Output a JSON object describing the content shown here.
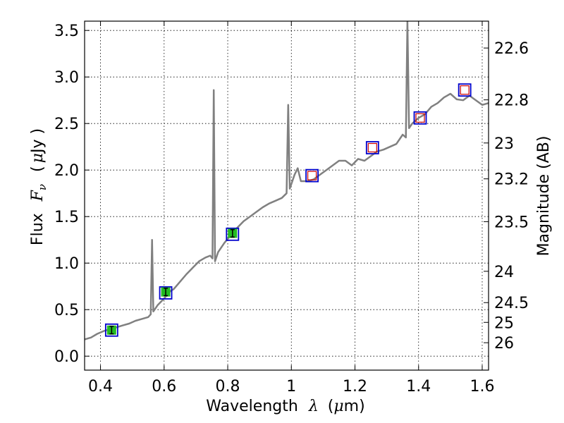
{
  "chart_data": {
    "type": "line",
    "title": "",
    "xlabel": "Wavelength",
    "xlabel_symbol": "λ",
    "xlabel_unit_open": "(",
    "xlabel_unit_mu": "μ",
    "xlabel_unit_rest": "m)",
    "ylabel": "Flux",
    "ylabel_symbol": "F",
    "ylabel_subscript": "ν",
    "ylabel_unit_open": "(",
    "ylabel_unit_mu": "μ",
    "ylabel_unit_rest": "Jy )",
    "y2label": "Magnitude (AB)",
    "xlim": [
      0.35,
      1.62
    ],
    "ylim": [
      -0.15,
      3.6
    ],
    "x_ticks": [
      0.4,
      0.6,
      0.8,
      1.0,
      1.2,
      1.4,
      1.6
    ],
    "x_tick_labels": [
      "0.4",
      "0.6",
      "0.8",
      "1",
      "1.2",
      "1.4",
      "1.6"
    ],
    "y_ticks": [
      0.0,
      0.5,
      1.0,
      1.5,
      2.0,
      2.5,
      3.0,
      3.5
    ],
    "y_tick_labels": [
      "0.0",
      "0.5",
      "1.0",
      "1.5",
      "2.0",
      "2.5",
      "3.0",
      "3.5"
    ],
    "y2_ticks": [
      22.6,
      22.8,
      23,
      23.2,
      23.5,
      24,
      24.5,
      25,
      26
    ],
    "y2_tick_labels": [
      "22.6",
      "22.8",
      "23",
      "23.2",
      "23.5",
      "24",
      "24.5",
      "25",
      "26"
    ],
    "grid": true,
    "colors": {
      "spectrum": "#808080",
      "model_box": "#0000cc",
      "obs_box": "#cc0000",
      "obs_fill": "#22bb22"
    },
    "spectrum": {
      "name": "spectrum",
      "x": [
        0.35,
        0.37,
        0.39,
        0.41,
        0.43,
        0.45,
        0.47,
        0.49,
        0.51,
        0.53,
        0.55,
        0.558,
        0.562,
        0.566,
        0.58,
        0.6,
        0.62,
        0.63,
        0.65,
        0.67,
        0.69,
        0.71,
        0.73,
        0.745,
        0.752,
        0.756,
        0.76,
        0.77,
        0.79,
        0.81,
        0.83,
        0.85,
        0.87,
        0.89,
        0.91,
        0.93,
        0.95,
        0.97,
        0.985,
        0.99,
        0.995,
        1.0,
        1.01,
        1.02,
        1.03,
        1.05,
        1.07,
        1.09,
        1.11,
        1.13,
        1.15,
        1.17,
        1.19,
        1.21,
        1.23,
        1.25,
        1.27,
        1.29,
        1.31,
        1.33,
        1.35,
        1.36,
        1.365,
        1.37,
        1.38,
        1.4,
        1.42,
        1.44,
        1.46,
        1.48,
        1.5,
        1.52,
        1.54,
        1.56,
        1.58,
        1.6,
        1.62
      ],
      "y": [
        0.18,
        0.2,
        0.24,
        0.27,
        0.29,
        0.31,
        0.33,
        0.35,
        0.38,
        0.4,
        0.42,
        0.45,
        1.25,
        0.48,
        0.55,
        0.62,
        0.7,
        0.72,
        0.8,
        0.88,
        0.95,
        1.02,
        1.06,
        1.08,
        1.05,
        2.86,
        1.02,
        1.12,
        1.22,
        1.3,
        1.38,
        1.45,
        1.5,
        1.55,
        1.6,
        1.64,
        1.67,
        1.7,
        1.75,
        2.7,
        1.8,
        1.85,
        1.95,
        2.02,
        1.88,
        1.88,
        1.9,
        1.95,
        2.0,
        2.05,
        2.1,
        2.1,
        2.05,
        2.12,
        2.1,
        2.15,
        2.2,
        2.22,
        2.25,
        2.28,
        2.38,
        2.35,
        3.6,
        2.45,
        2.5,
        2.56,
        2.6,
        2.68,
        2.72,
        2.78,
        2.82,
        2.76,
        2.75,
        2.8,
        2.75,
        2.7,
        2.72
      ]
    },
    "model_points": {
      "name": "model",
      "x": [
        0.435,
        0.605,
        0.815,
        1.065,
        1.255,
        1.405,
        1.545
      ],
      "y": [
        0.28,
        0.68,
        1.31,
        1.94,
        2.24,
        2.56,
        2.86
      ]
    },
    "observed_points": [
      {
        "x": 0.435,
        "y": 0.28,
        "err": 0.04,
        "filled": true
      },
      {
        "x": 0.605,
        "y": 0.69,
        "err": 0.04,
        "filled": true
      },
      {
        "x": 0.815,
        "y": 1.32,
        "err": 0.04,
        "filled": true
      },
      {
        "x": 1.065,
        "y": 1.94,
        "filled": false
      },
      {
        "x": 1.255,
        "y": 2.24,
        "filled": false
      },
      {
        "x": 1.405,
        "y": 2.56,
        "filled": false
      },
      {
        "x": 1.545,
        "y": 2.86,
        "filled": false
      }
    ]
  }
}
